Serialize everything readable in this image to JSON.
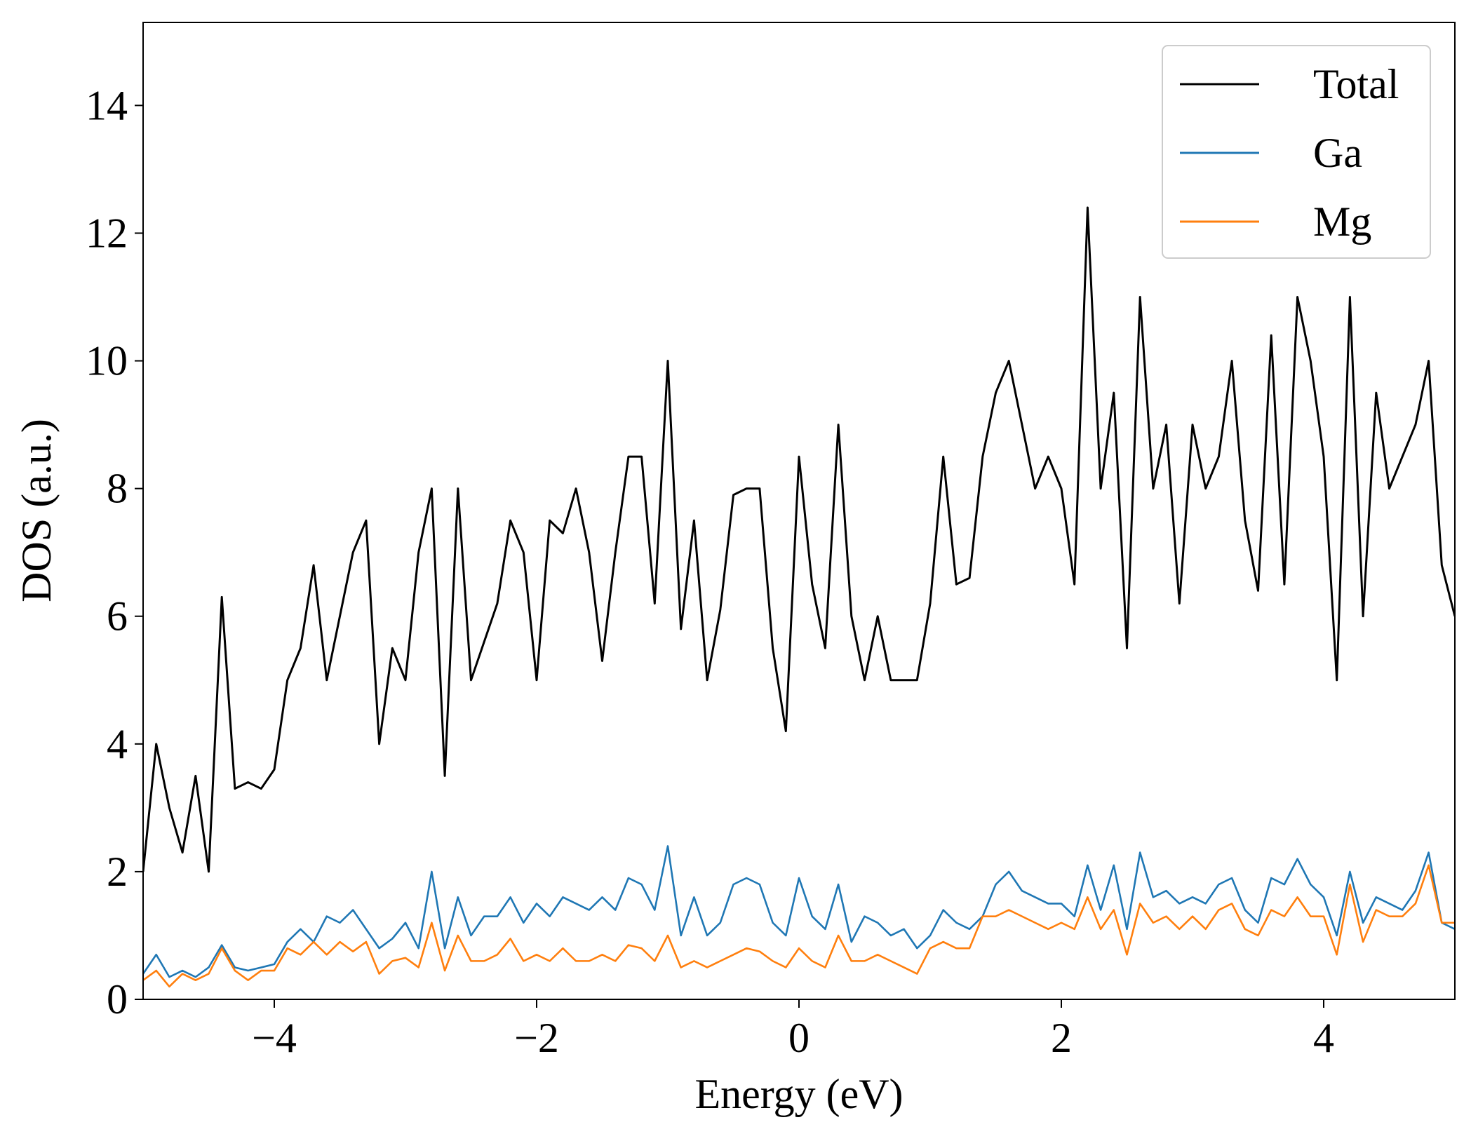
{
  "chart_data": {
    "type": "line",
    "xlabel": "Energy (eV)",
    "ylabel": "DOS (a.u.)",
    "x": [
      -5.0,
      -4.9,
      -4.8,
      -4.7,
      -4.6,
      -4.5,
      -4.4,
      -4.3,
      -4.2,
      -4.1,
      -4.0,
      -3.9,
      -3.8,
      -3.7,
      -3.6,
      -3.5,
      -3.4,
      -3.3,
      -3.2,
      -3.1,
      -3.0,
      -2.9,
      -2.8,
      -2.7,
      -2.6,
      -2.5,
      -2.4,
      -2.3,
      -2.2,
      -2.1,
      -2.0,
      -1.9,
      -1.8,
      -1.7,
      -1.6,
      -1.5,
      -1.4,
      -1.3,
      -1.2,
      -1.1,
      -1.0,
      -0.9,
      -0.8,
      -0.7,
      -0.6,
      -0.5,
      -0.4,
      -0.3,
      -0.2,
      -0.1,
      0.0,
      0.1,
      0.2,
      0.3,
      0.4,
      0.5,
      0.6,
      0.7,
      0.8,
      0.9,
      1.0,
      1.1,
      1.2,
      1.3,
      1.4,
      1.5,
      1.6,
      1.7,
      1.8,
      1.9,
      2.0,
      2.1,
      2.2,
      2.3,
      2.4,
      2.5,
      2.6,
      2.7,
      2.8,
      2.9,
      3.0,
      3.1,
      3.2,
      3.3,
      3.4,
      3.5,
      3.6,
      3.7,
      3.8,
      3.9,
      4.0,
      4.1,
      4.2,
      4.3,
      4.4,
      4.5,
      4.6,
      4.7,
      4.8,
      4.9,
      5.0
    ],
    "series": [
      {
        "name": "Total",
        "color": "#000000",
        "values": [
          2.0,
          4.0,
          3.0,
          2.3,
          3.5,
          2.0,
          6.3,
          3.3,
          3.4,
          3.3,
          3.6,
          5.0,
          5.5,
          6.8,
          5.0,
          6.0,
          7.0,
          7.5,
          4.0,
          5.5,
          5.0,
          7.0,
          8.0,
          3.5,
          8.0,
          5.0,
          5.6,
          6.2,
          7.5,
          7.0,
          5.0,
          7.5,
          7.3,
          8.0,
          7.0,
          5.3,
          7.0,
          8.5,
          8.5,
          6.2,
          10.0,
          5.8,
          7.5,
          5.0,
          6.1,
          7.9,
          8.0,
          8.0,
          5.5,
          4.2,
          8.5,
          6.5,
          5.5,
          9.0,
          6.0,
          5.0,
          6.0,
          5.0,
          5.0,
          5.0,
          6.2,
          8.5,
          6.5,
          6.6,
          8.5,
          9.5,
          10.0,
          9.0,
          8.0,
          8.5,
          8.0,
          6.5,
          12.4,
          8.0,
          9.5,
          5.5,
          11.0,
          8.0,
          9.0,
          6.2,
          9.0,
          8.0,
          8.5,
          10.0,
          7.5,
          6.4,
          10.4,
          6.5,
          11.0,
          10.0,
          8.5,
          5.0,
          11.0,
          6.0,
          9.5,
          8.0,
          8.5,
          9.0,
          10.0,
          6.8,
          6.0
        ]
      },
      {
        "name": "Ga",
        "color": "#1f77b4",
        "values": [
          0.4,
          0.7,
          0.35,
          0.45,
          0.35,
          0.5,
          0.85,
          0.5,
          0.45,
          0.5,
          0.55,
          0.9,
          1.1,
          0.9,
          1.3,
          1.2,
          1.4,
          1.1,
          0.8,
          0.95,
          1.2,
          0.8,
          2.0,
          0.8,
          1.6,
          1.0,
          1.3,
          1.3,
          1.6,
          1.2,
          1.5,
          1.3,
          1.6,
          1.5,
          1.4,
          1.6,
          1.4,
          1.9,
          1.8,
          1.4,
          2.4,
          1.0,
          1.6,
          1.0,
          1.2,
          1.8,
          1.9,
          1.8,
          1.2,
          1.0,
          1.9,
          1.3,
          1.1,
          1.8,
          0.9,
          1.3,
          1.2,
          1.0,
          1.1,
          0.8,
          1.0,
          1.4,
          1.2,
          1.1,
          1.3,
          1.8,
          2.0,
          1.7,
          1.6,
          1.5,
          1.5,
          1.3,
          2.1,
          1.4,
          2.1,
          1.1,
          2.3,
          1.6,
          1.7,
          1.5,
          1.6,
          1.5,
          1.8,
          1.9,
          1.4,
          1.2,
          1.9,
          1.8,
          2.2,
          1.8,
          1.6,
          1.0,
          2.0,
          1.2,
          1.6,
          1.5,
          1.4,
          1.7,
          2.3,
          1.2,
          1.1
        ]
      },
      {
        "name": "Mg",
        "color": "#ff7f0e",
        "values": [
          0.3,
          0.45,
          0.2,
          0.4,
          0.3,
          0.4,
          0.8,
          0.45,
          0.3,
          0.45,
          0.45,
          0.8,
          0.7,
          0.9,
          0.7,
          0.9,
          0.75,
          0.9,
          0.4,
          0.6,
          0.65,
          0.5,
          1.2,
          0.45,
          1.0,
          0.6,
          0.6,
          0.7,
          0.95,
          0.6,
          0.7,
          0.6,
          0.8,
          0.6,
          0.6,
          0.7,
          0.6,
          0.85,
          0.8,
          0.6,
          1.0,
          0.5,
          0.6,
          0.5,
          0.6,
          0.7,
          0.8,
          0.75,
          0.6,
          0.5,
          0.8,
          0.6,
          0.5,
          1.0,
          0.6,
          0.6,
          0.7,
          0.6,
          0.5,
          0.4,
          0.8,
          0.9,
          0.8,
          0.8,
          1.3,
          1.3,
          1.4,
          1.3,
          1.2,
          1.1,
          1.2,
          1.1,
          1.6,
          1.1,
          1.4,
          0.7,
          1.5,
          1.2,
          1.3,
          1.1,
          1.3,
          1.1,
          1.4,
          1.5,
          1.1,
          1.0,
          1.4,
          1.3,
          1.6,
          1.3,
          1.3,
          0.7,
          1.8,
          0.9,
          1.4,
          1.3,
          1.3,
          1.5,
          2.1,
          1.2,
          1.2
        ]
      }
    ],
    "xlim": [
      -5,
      5
    ],
    "xticks": [
      {
        "value": -4,
        "label": "−4"
      },
      {
        "value": -2,
        "label": "−2"
      },
      0,
      2,
      4
    ],
    "ylim": [
      0,
      15.3
    ],
    "yticks": [
      0,
      2,
      4,
      6,
      8,
      10,
      12,
      14
    ],
    "legend": "upper right",
    "grid": false
  }
}
